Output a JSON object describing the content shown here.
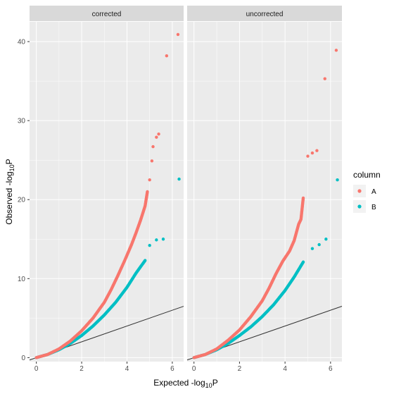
{
  "chart_data": {
    "type": "scatter",
    "facets": [
      "corrected",
      "uncorrected"
    ],
    "xlabel": "Expected -log10P",
    "ylabel": "Observed -log10P",
    "xlim": [
      -0.3,
      6.5
    ],
    "ylim": [
      -0.5,
      42.5
    ],
    "x_ticks": [
      0,
      2,
      4,
      6
    ],
    "y_ticks": [
      0,
      10,
      20,
      30,
      40
    ],
    "grid": true,
    "legend": {
      "title": "column",
      "position": "right",
      "entries": [
        "A",
        "B"
      ]
    },
    "reference_line": {
      "intercept": 0,
      "slope": 1
    },
    "series": [
      {
        "name": "A",
        "color": "#F8766D",
        "panels": [
          {
            "facet": "corrected",
            "points": [
              [
                0,
                0
              ],
              [
                0.5,
                0.4
              ],
              [
                1,
                1.1
              ],
              [
                1.5,
                2.1
              ],
              [
                2,
                3.4
              ],
              [
                2.5,
                5
              ],
              [
                3,
                7
              ],
              [
                3.3,
                8.6
              ],
              [
                3.6,
                10.4
              ],
              [
                3.9,
                12.3
              ],
              [
                4.2,
                14.3
              ],
              [
                4.4,
                15.8
              ],
              [
                4.6,
                17.4
              ],
              [
                4.8,
                19.2
              ],
              [
                4.9,
                21
              ],
              [
                5,
                22.5
              ],
              [
                5.1,
                24.9
              ],
              [
                5.15,
                26.7
              ],
              [
                5.3,
                27.9
              ],
              [
                5.4,
                28.3
              ],
              [
                5.75,
                38.2
              ],
              [
                6.25,
                40.9
              ]
            ]
          },
          {
            "facet": "uncorrected",
            "points": [
              [
                0,
                0
              ],
              [
                0.5,
                0.4
              ],
              [
                1,
                1.1
              ],
              [
                1.5,
                2.2
              ],
              [
                2,
                3.5
              ],
              [
                2.5,
                5.2
              ],
              [
                3,
                7.2
              ],
              [
                3.3,
                8.8
              ],
              [
                3.6,
                10.6
              ],
              [
                3.9,
                12.2
              ],
              [
                4.2,
                13.5
              ],
              [
                4.4,
                14.8
              ],
              [
                4.6,
                16.9
              ],
              [
                4.7,
                17.5
              ],
              [
                4.8,
                20.2
              ],
              [
                5,
                25.5
              ],
              [
                5.2,
                25.9
              ],
              [
                5.4,
                26.2
              ],
              [
                5.75,
                35.3
              ],
              [
                6.25,
                38.9
              ]
            ]
          }
        ]
      },
      {
        "name": "B",
        "color": "#00BFC4",
        "panels": [
          {
            "facet": "corrected",
            "points": [
              [
                0,
                0
              ],
              [
                0.5,
                0.4
              ],
              [
                1,
                1
              ],
              [
                1.5,
                1.8
              ],
              [
                2,
                2.8
              ],
              [
                2.5,
                4
              ],
              [
                3,
                5.4
              ],
              [
                3.5,
                7
              ],
              [
                4,
                8.9
              ],
              [
                4.4,
                10.7
              ],
              [
                4.8,
                12.3
              ],
              [
                5,
                14.2
              ],
              [
                5.3,
                14.9
              ],
              [
                5.6,
                15
              ],
              [
                6.3,
                22.6
              ]
            ]
          },
          {
            "facet": "uncorrected",
            "points": [
              [
                0,
                0
              ],
              [
                0.5,
                0.4
              ],
              [
                1,
                1
              ],
              [
                1.5,
                1.8
              ],
              [
                2,
                2.8
              ],
              [
                2.5,
                3.9
              ],
              [
                3,
                5.2
              ],
              [
                3.5,
                6.7
              ],
              [
                4,
                8.5
              ],
              [
                4.4,
                10.2
              ],
              [
                4.8,
                12.1
              ],
              [
                5.2,
                13.8
              ],
              [
                5.5,
                14.3
              ],
              [
                5.8,
                15
              ],
              [
                6.3,
                22.5
              ]
            ]
          }
        ]
      }
    ]
  },
  "colors": {
    "panel_background": "#EBEBEB",
    "strip_background": "#D9D9D9",
    "grid_major": "#FFFFFF",
    "reference_line": "#333333"
  }
}
